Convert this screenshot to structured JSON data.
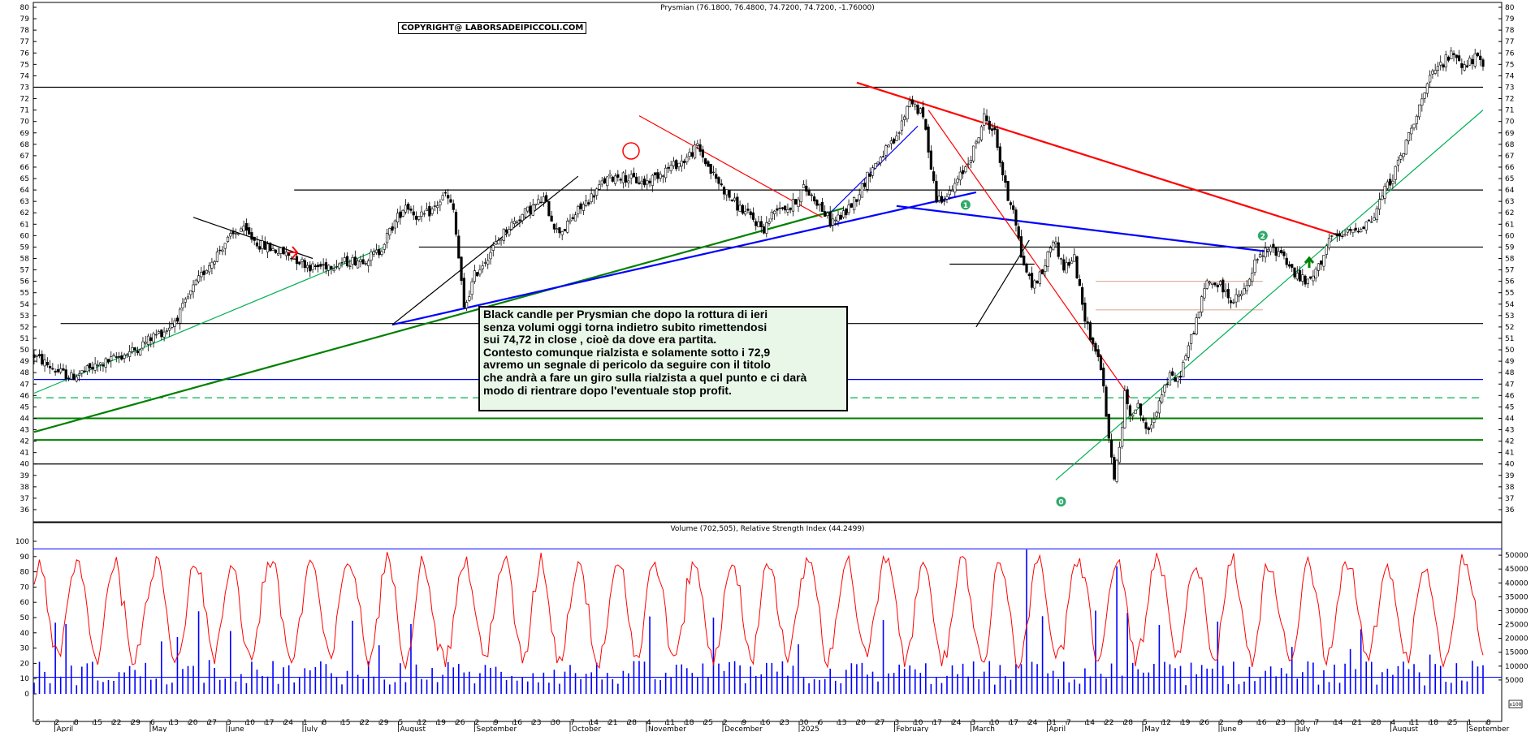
{
  "chart_data": [
    {
      "type": "candlestick",
      "title": "Prysmian (76.1800, 76.4800, 74.7200, 74.7200, -1.76000)",
      "ylim": [
        36,
        80
      ],
      "yticks": [
        36,
        37,
        38,
        39,
        40,
        41,
        42,
        43,
        44,
        45,
        46,
        47,
        48,
        49,
        50,
        51,
        52,
        53,
        54,
        55,
        56,
        57,
        58,
        59,
        60,
        61,
        62,
        63,
        64,
        65,
        66,
        67,
        68,
        69,
        70,
        71,
        72,
        73,
        74,
        75,
        76,
        77,
        78,
        79,
        80
      ],
      "grid": false,
      "price_path": [
        [
          0,
          49.5
        ],
        [
          8,
          48.2
        ],
        [
          14,
          47.6
        ],
        [
          22,
          48.4
        ],
        [
          30,
          49.2
        ],
        [
          38,
          50.0
        ],
        [
          45,
          51.2
        ],
        [
          50,
          51.8
        ],
        [
          55,
          53.2
        ],
        [
          60,
          55.4
        ],
        [
          65,
          57.2
        ],
        [
          72,
          59.4
        ],
        [
          78,
          60.6
        ],
        [
          85,
          59.2
        ],
        [
          95,
          58.4
        ],
        [
          105,
          57.2
        ],
        [
          115,
          57.6
        ],
        [
          125,
          58.0
        ],
        [
          130,
          58.6
        ],
        [
          135,
          60.8
        ],
        [
          140,
          62.8
        ],
        [
          145,
          61.5
        ],
        [
          150,
          62.2
        ],
        [
          155,
          63.6
        ],
        [
          158,
          62.2
        ],
        [
          160,
          58.0
        ],
        [
          162,
          53.5
        ],
        [
          166,
          56.5
        ],
        [
          172,
          58.6
        ],
        [
          178,
          60.6
        ],
        [
          185,
          62.0
        ],
        [
          192,
          63.2
        ],
        [
          197,
          60.4
        ],
        [
          200,
          60.6
        ],
        [
          205,
          62.2
        ],
        [
          210,
          63.4
        ],
        [
          215,
          64.8
        ],
        [
          220,
          65.3
        ],
        [
          230,
          64.6
        ],
        [
          238,
          65.8
        ],
        [
          245,
          66.6
        ],
        [
          250,
          67.8
        ],
        [
          255,
          65.6
        ],
        [
          260,
          64.0
        ],
        [
          265,
          62.6
        ],
        [
          270,
          61.6
        ],
        [
          275,
          60.6
        ],
        [
          280,
          62.6
        ],
        [
          285,
          62.4
        ],
        [
          290,
          64.2
        ],
        [
          295,
          63.0
        ],
        [
          300,
          61.2
        ],
        [
          305,
          61.8
        ],
        [
          310,
          63.4
        ],
        [
          315,
          65.6
        ],
        [
          320,
          67.2
        ],
        [
          325,
          68.4
        ],
        [
          330,
          72.0
        ],
        [
          335,
          70.4
        ],
        [
          338,
          66.2
        ],
        [
          340,
          63.2
        ],
        [
          345,
          63.6
        ],
        [
          350,
          65.6
        ],
        [
          355,
          68.0
        ],
        [
          358,
          70.4
        ],
        [
          362,
          69.0
        ],
        [
          365,
          65.4
        ],
        [
          367,
          63.2
        ],
        [
          369,
          62.6
        ],
        [
          372,
          58.2
        ],
        [
          376,
          55.6
        ],
        [
          380,
          56.8
        ],
        [
          384,
          59.8
        ],
        [
          388,
          57.2
        ],
        [
          392,
          58.0
        ],
        [
          395,
          53.8
        ],
        [
          398,
          51.2
        ],
        [
          402,
          48.6
        ],
        [
          405,
          42.0
        ],
        [
          407,
          39.0
        ],
        [
          409,
          41.2
        ],
        [
          411,
          46.0
        ],
        [
          413,
          44.6
        ],
        [
          416,
          45.0
        ],
        [
          420,
          42.6
        ],
        [
          425,
          46.4
        ],
        [
          428,
          47.6
        ],
        [
          431,
          47.3
        ],
        [
          435,
          50.2
        ],
        [
          438,
          52.6
        ],
        [
          442,
          56.0
        ],
        [
          447,
          55.6
        ],
        [
          452,
          54.2
        ],
        [
          457,
          55.4
        ],
        [
          460,
          57.6
        ],
        [
          465,
          58.8
        ],
        [
          470,
          58.6
        ],
        [
          475,
          56.6
        ],
        [
          480,
          55.8
        ],
        [
          484,
          57.2
        ],
        [
          488,
          59.8
        ],
        [
          492,
          59.8
        ],
        [
          495,
          60.2
        ],
        [
          500,
          60.8
        ],
        [
          505,
          61.6
        ],
        [
          508,
          63.6
        ],
        [
          512,
          65.2
        ],
        [
          516,
          67.4
        ],
        [
          520,
          70.2
        ],
        [
          524,
          72.4
        ],
        [
          527,
          74.2
        ],
        [
          531,
          75.2
        ],
        [
          535,
          76.0
        ],
        [
          539,
          74.8
        ],
        [
          543,
          75.6
        ],
        [
          546,
          74.7
        ]
      ],
      "trendlines": [
        {
          "color": "#008000",
          "x": [
            0,
            305
          ],
          "y": [
            42.8,
            62.4
          ]
        },
        {
          "color": "#00b050",
          "x": [
            0,
            132
          ],
          "y": [
            46.2,
            59.0
          ]
        },
        {
          "color": "#000000",
          "x": [
            60,
            105
          ],
          "y": [
            61.6,
            58.0
          ]
        },
        {
          "color": "#0000ff",
          "x": [
            135,
            355
          ],
          "y": [
            52.2,
            63.8
          ]
        },
        {
          "color": "#000000",
          "x": [
            135,
            205
          ],
          "y": [
            52.2,
            65.2
          ]
        },
        {
          "color": "#ff0000",
          "x": [
            228,
            297
          ],
          "y": [
            70.5,
            61.6
          ]
        },
        {
          "color": "#0000ff",
          "x": [
            300,
            333
          ],
          "y": [
            62.0,
            69.6
          ]
        },
        {
          "color": "#ff0000",
          "x": [
            310,
            492
          ],
          "y": [
            73.4,
            60.0
          ]
        },
        {
          "color": "#0000ff",
          "x": [
            325,
            465
          ],
          "y": [
            62.6,
            58.6
          ]
        },
        {
          "color": "#ff0000",
          "x": [
            337,
            413
          ],
          "y": [
            71.0,
            45.8
          ]
        },
        {
          "color": "#000000",
          "x": [
            355,
            375
          ],
          "y": [
            52.0,
            59.6
          ]
        },
        {
          "color": "#00b050",
          "x": [
            385,
            546
          ],
          "y": [
            38.6,
            71.0
          ]
        }
      ],
      "hlines": [
        {
          "y": 73.0,
          "x": [
            0,
            546
          ],
          "color": "#000000"
        },
        {
          "y": 64.0,
          "x": [
            98,
            546
          ],
          "color": "#000000"
        },
        {
          "y": 59.0,
          "x": [
            145,
            546
          ],
          "color": "#000000"
        },
        {
          "y": 52.3,
          "x": [
            10,
            546
          ],
          "color": "#000000"
        },
        {
          "y": 57.5,
          "x": [
            345,
            377
          ],
          "color": "#000000"
        },
        {
          "y": 47.4,
          "x": [
            0,
            546
          ],
          "color": "#0000ff"
        },
        {
          "y": 45.8,
          "x": [
            0,
            546
          ],
          "color": "#00b050",
          "dashed": true
        },
        {
          "y": 44.0,
          "x": [
            0,
            546
          ],
          "color": "#008000"
        },
        {
          "y": 42.1,
          "x": [
            0,
            546
          ],
          "color": "#008000"
        },
        {
          "y": 40.0,
          "x": [
            0,
            546
          ],
          "color": "#000000"
        },
        {
          "y": 56.0,
          "x": [
            400,
            463
          ],
          "color": "#e0b0a0"
        },
        {
          "y": 53.5,
          "x": [
            400,
            463
          ],
          "color": "#e0b0a0"
        }
      ],
      "markers": [
        {
          "label": "0",
          "x": 387,
          "y": 36.7
        },
        {
          "label": "1",
          "x": 351,
          "y": 62.7
        },
        {
          "label": "2",
          "x": 463,
          "y": 60.0
        }
      ]
    },
    {
      "type": "line",
      "title": "Volume (702,505), Relative Strength Index (44.2499)",
      "left_ylim": [
        0,
        100
      ],
      "left_yticks": [
        0,
        10,
        20,
        30,
        40,
        50,
        60,
        70,
        80,
        90,
        100
      ],
      "right_ylim": [
        0,
        55000
      ],
      "right_yticks": [
        5000,
        10000,
        15000,
        20000,
        25000,
        30000,
        35000,
        40000,
        45000,
        50000
      ],
      "rsi_level": 95,
      "volume_level": 6000,
      "series": []
    }
  ],
  "x_axis": {
    "day_labels": [
      "5",
      "2",
      "8",
      "15",
      "22",
      "29",
      "6",
      "13",
      "20",
      "27",
      "3",
      "10",
      "17",
      "24",
      "1",
      "8",
      "15",
      "22",
      "29",
      "5",
      "12",
      "19",
      "26",
      "2",
      "9",
      "16",
      "23",
      "30",
      "7",
      "14",
      "21",
      "28",
      "4",
      "11",
      "18",
      "25",
      "2",
      "9",
      "16",
      "23",
      "30",
      "6",
      "13",
      "20",
      "27",
      "3",
      "10",
      "17",
      "24",
      "3",
      "10",
      "17",
      "24",
      "31",
      "7",
      "14",
      "22",
      "28",
      "5",
      "12",
      "19",
      "26",
      "2",
      "9",
      "16",
      "23",
      "30",
      "7",
      "14",
      "21",
      "28",
      "4",
      "11",
      "18",
      "25",
      "1",
      "8"
    ],
    "month_labels": [
      "April",
      "May",
      "June",
      "July",
      "August",
      "September",
      "October",
      "November",
      "December",
      "2025",
      "February",
      "March",
      "April",
      "May",
      "June",
      "July",
      "August",
      "September"
    ]
  },
  "copyright": "COPYRIGHT@ LABORSADEIPICCOLI.COM",
  "note_lines": [
    "Black candle per Prysmian che dopo la rottura di ieri",
    "senza volumi oggi torna indietro subito rimettendosi",
    "sui 74,72 in close , cioè da dove era partita.",
    "Contesto comunque rialzista  e solamente sotto i 72,9",
    "avremo un segnale di pericolo da seguire con il titolo",
    "che andrà a fare un giro sulla rialzista a quel punto e ci darà",
    "modo di rientrare dopo l'eventuale stop profit."
  ],
  "scale_badge": "x100"
}
